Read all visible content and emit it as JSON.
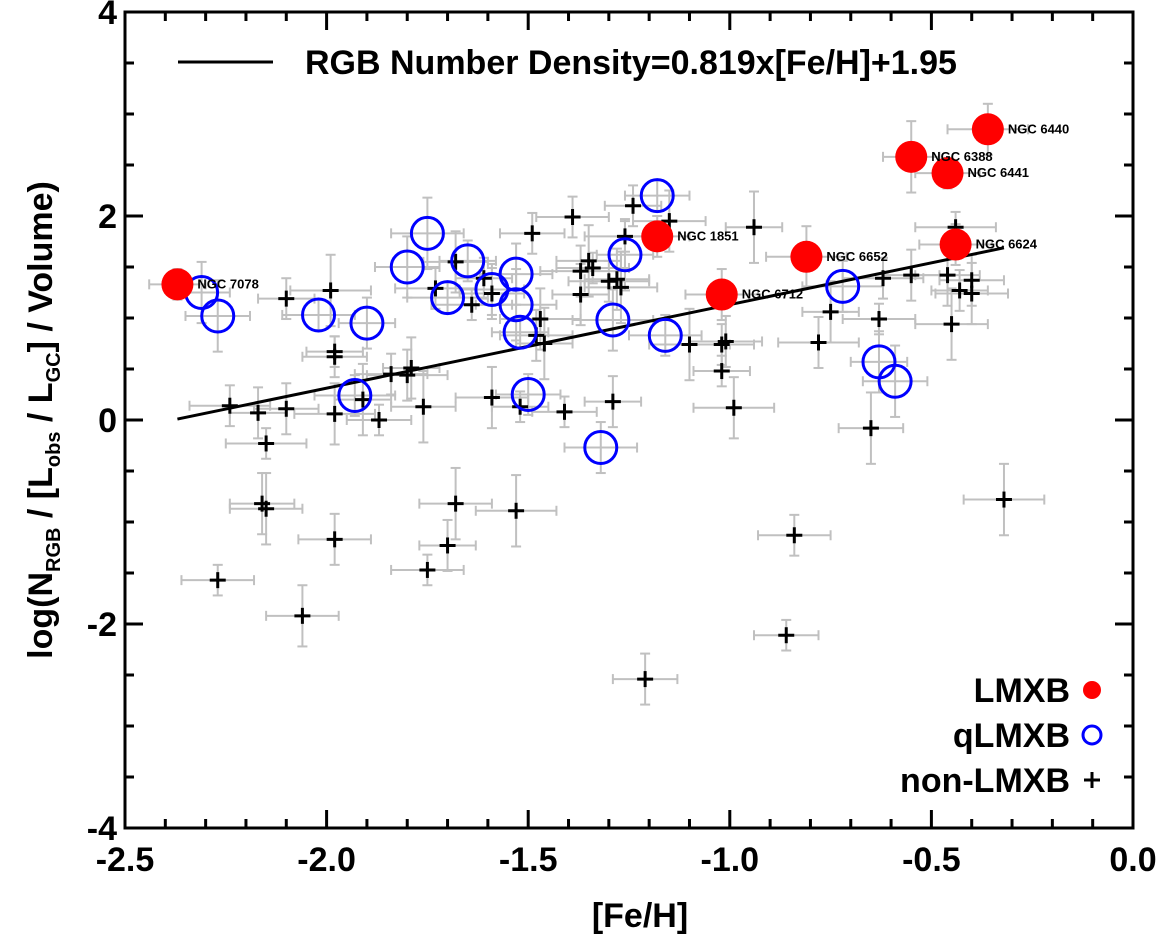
{
  "chart_data": {
    "type": "scatter",
    "title": "",
    "xlabel": "[Fe/H]",
    "ylabel_parts": {
      "prefix": "log(N",
      "sub1": "RGB",
      "mid1": " / [L",
      "sub2": "obs",
      "mid2": " / L",
      "sub3": "GC",
      "suffix": "] / Volume)"
    },
    "xlim": [
      -2.5,
      0.0
    ],
    "ylim": [
      -4,
      4
    ],
    "xticks": [
      -2.5,
      -2.0,
      -1.5,
      -1.0,
      -0.5,
      0.0
    ],
    "xtick_labels": [
      "-2.5",
      "-2.0",
      "-1.5",
      "-1.0",
      "-0.5",
      "0.0"
    ],
    "yticks": [
      -4,
      -2,
      0,
      2,
      4
    ],
    "ytick_labels": [
      "-4",
      "-2",
      "0",
      "2",
      "4"
    ],
    "grid": false,
    "legend_position": "bottom-right",
    "fit": {
      "label": "RGB Number Density=0.819x[Fe/H]+1.95",
      "slope": 0.819,
      "intercept": 1.95,
      "x_range": [
        -2.37,
        -0.32
      ],
      "color": "#000000"
    },
    "series": [
      {
        "name": "LMXB",
        "marker": "filled-circle",
        "color": "#ff0000",
        "points": [
          {
            "x": -2.37,
            "y": 1.33,
            "label": "NGC 7078"
          },
          {
            "x": -1.18,
            "y": 1.8,
            "label": "NGC 1851"
          },
          {
            "x": -1.02,
            "y": 1.23,
            "label": "NGC 6712"
          },
          {
            "x": -0.81,
            "y": 1.6,
            "label": "NGC 6652"
          },
          {
            "x": -0.55,
            "y": 2.58,
            "label": "NGC 6388"
          },
          {
            "x": -0.46,
            "y": 2.42,
            "label": "NGC 6441"
          },
          {
            "x": -0.44,
            "y": 1.72,
            "label": "NGC 6624"
          },
          {
            "x": -0.36,
            "y": 2.85,
            "label": "NGC 6440"
          }
        ]
      },
      {
        "name": "qLMXB",
        "marker": "open-circle",
        "color": "#0000ff",
        "points": [
          {
            "x": -2.31,
            "y": 1.25
          },
          {
            "x": -2.27,
            "y": 1.02
          },
          {
            "x": -2.02,
            "y": 1.03
          },
          {
            "x": -1.93,
            "y": 0.24
          },
          {
            "x": -1.9,
            "y": 0.95
          },
          {
            "x": -1.8,
            "y": 1.5
          },
          {
            "x": -1.75,
            "y": 1.83
          },
          {
            "x": -1.7,
            "y": 1.2
          },
          {
            "x": -1.65,
            "y": 1.56
          },
          {
            "x": -1.59,
            "y": 1.28
          },
          {
            "x": -1.53,
            "y": 1.43
          },
          {
            "x": -1.53,
            "y": 1.13
          },
          {
            "x": -1.52,
            "y": 0.86
          },
          {
            "x": -1.5,
            "y": 0.25
          },
          {
            "x": -1.32,
            "y": -0.27
          },
          {
            "x": -1.29,
            "y": 0.98
          },
          {
            "x": -1.26,
            "y": 1.62
          },
          {
            "x": -1.18,
            "y": 2.2
          },
          {
            "x": -1.16,
            "y": 0.83
          },
          {
            "x": -0.72,
            "y": 1.31
          },
          {
            "x": -0.63,
            "y": 0.57
          },
          {
            "x": -0.59,
            "y": 0.38
          }
        ]
      },
      {
        "name": "non-LMXB",
        "marker": "plus",
        "color": "#000000",
        "points": [
          {
            "x": -2.27,
            "y": -1.57
          },
          {
            "x": -2.24,
            "y": 0.14
          },
          {
            "x": -2.17,
            "y": 0.07
          },
          {
            "x": -2.16,
            "y": -0.82
          },
          {
            "x": -2.15,
            "y": -0.87
          },
          {
            "x": -2.15,
            "y": -0.23
          },
          {
            "x": -2.1,
            "y": 1.19
          },
          {
            "x": -2.1,
            "y": 0.11
          },
          {
            "x": -2.06,
            "y": -1.92
          },
          {
            "x": -1.99,
            "y": 1.27
          },
          {
            "x": -1.98,
            "y": 0.67
          },
          {
            "x": -1.98,
            "y": 0.62
          },
          {
            "x": -1.98,
            "y": -1.17
          },
          {
            "x": -1.98,
            "y": 0.06
          },
          {
            "x": -1.91,
            "y": 0.2
          },
          {
            "x": -1.87,
            "y": 0.0
          },
          {
            "x": -1.84,
            "y": 0.45
          },
          {
            "x": -1.8,
            "y": 0.44
          },
          {
            "x": -1.79,
            "y": 0.51
          },
          {
            "x": -1.76,
            "y": 0.13
          },
          {
            "x": -1.75,
            "y": -1.47
          },
          {
            "x": -1.73,
            "y": 1.29
          },
          {
            "x": -1.7,
            "y": -1.23
          },
          {
            "x": -1.68,
            "y": 1.55
          },
          {
            "x": -1.68,
            "y": -0.82
          },
          {
            "x": -1.64,
            "y": 1.13
          },
          {
            "x": -1.61,
            "y": 1.39
          },
          {
            "x": -1.59,
            "y": 1.24
          },
          {
            "x": -1.59,
            "y": 0.22
          },
          {
            "x": -1.53,
            "y": -0.89
          },
          {
            "x": -1.52,
            "y": 0.13
          },
          {
            "x": -1.49,
            "y": 1.83
          },
          {
            "x": -1.48,
            "y": 0.83
          },
          {
            "x": -1.47,
            "y": 0.99
          },
          {
            "x": -1.46,
            "y": 0.75
          },
          {
            "x": -1.41,
            "y": 0.08
          },
          {
            "x": -1.39,
            "y": 1.99
          },
          {
            "x": -1.37,
            "y": 1.46
          },
          {
            "x": -1.37,
            "y": 1.23
          },
          {
            "x": -1.35,
            "y": 1.56
          },
          {
            "x": -1.34,
            "y": 1.49
          },
          {
            "x": -1.3,
            "y": 1.36
          },
          {
            "x": -1.29,
            "y": 0.18
          },
          {
            "x": -1.28,
            "y": 1.38
          },
          {
            "x": -1.27,
            "y": 1.3
          },
          {
            "x": -1.26,
            "y": 1.8
          },
          {
            "x": -1.24,
            "y": 2.1
          },
          {
            "x": -1.21,
            "y": -2.54
          },
          {
            "x": -1.15,
            "y": 1.95
          },
          {
            "x": -1.1,
            "y": 0.74
          },
          {
            "x": -1.02,
            "y": 0.48
          },
          {
            "x": -1.02,
            "y": 0.74
          },
          {
            "x": -1.01,
            "y": 0.77
          },
          {
            "x": -0.99,
            "y": 0.12
          },
          {
            "x": -0.94,
            "y": 1.89
          },
          {
            "x": -0.86,
            "y": -2.11
          },
          {
            "x": -0.84,
            "y": -1.13
          },
          {
            "x": -0.78,
            "y": 0.76
          },
          {
            "x": -0.75,
            "y": 1.06
          },
          {
            "x": -0.65,
            "y": -0.08
          },
          {
            "x": -0.63,
            "y": 0.99
          },
          {
            "x": -0.62,
            "y": 1.39
          },
          {
            "x": -0.55,
            "y": 1.42
          },
          {
            "x": -0.46,
            "y": 1.42
          },
          {
            "x": -0.45,
            "y": 0.94
          },
          {
            "x": -0.44,
            "y": 1.89
          },
          {
            "x": -0.43,
            "y": 1.27
          },
          {
            "x": -0.4,
            "y": 1.37
          },
          {
            "x": -0.4,
            "y": 1.24
          },
          {
            "x": -0.32,
            "y": -0.78
          }
        ]
      }
    ],
    "legend": [
      {
        "label": "LMXB",
        "marker": "filled-circle",
        "color": "#ff0000"
      },
      {
        "label": "qLMXB",
        "marker": "open-circle",
        "color": "#0000ff"
      },
      {
        "label": "non-LMXB",
        "marker": "plus",
        "color": "#000000"
      }
    ],
    "errorbar_color": "#c0c0c0"
  }
}
